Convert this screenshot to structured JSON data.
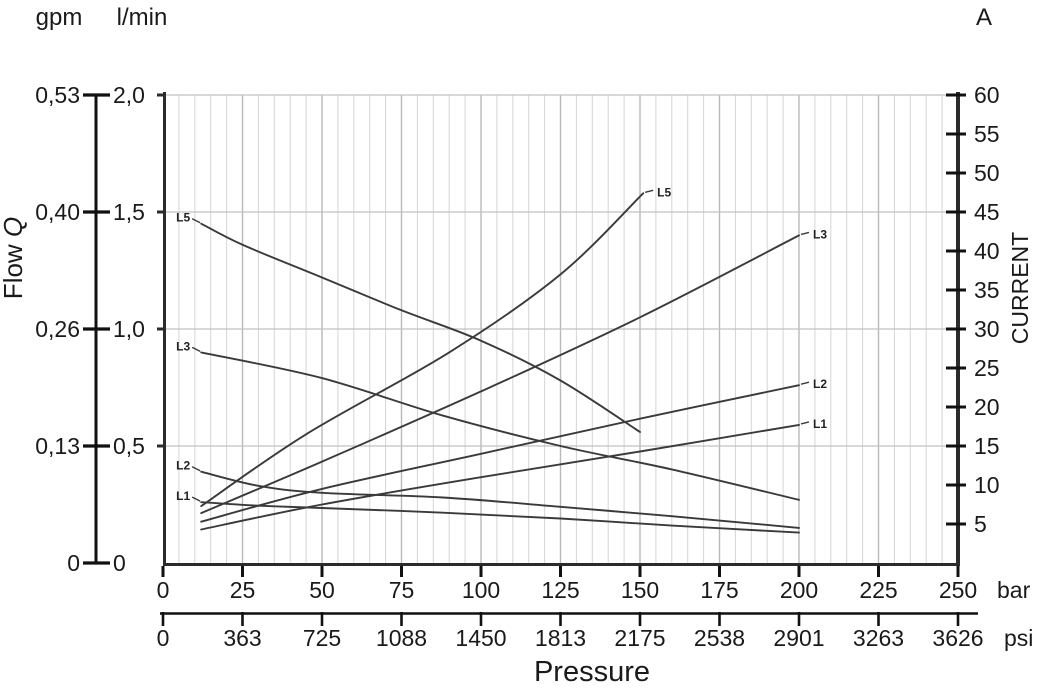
{
  "header": {
    "left_unit_primary": "gpm",
    "left_unit_secondary": "l/min",
    "right_unit": "A"
  },
  "axes": {
    "flow_axis": {
      "title_word": "Flow",
      "title_symbol": "Q"
    },
    "current_axis": {
      "title": "CURRENT"
    },
    "pressure_axis": {
      "title": "Pressure",
      "bar_suffix": "bar",
      "psi_suffix": "psi"
    }
  },
  "chart_data": {
    "type": "line",
    "title": "",
    "x_axis": {
      "label": "Pressure",
      "unit_primary": "bar",
      "unit_secondary": "psi",
      "range_bar": [
        0,
        250
      ],
      "bar_ticks": [
        "0",
        "25",
        "50",
        "75",
        "100",
        "125",
        "150",
        "175",
        "200",
        "225",
        "250"
      ],
      "psi_ticks": [
        "0",
        "363",
        "725",
        "1088",
        "1450",
        "1813",
        "2175",
        "2538",
        "2901",
        "3263",
        "3626"
      ],
      "minor_grid_step_bar": 5,
      "major_grid_step_bar": 25,
      "grid": "on"
    },
    "y_left_axis": {
      "label": "Flow Q",
      "units": [
        "gpm",
        "l/min"
      ],
      "range_lmin": [
        0,
        2.0
      ],
      "lmin_ticks": [
        "2,0",
        "1,5",
        "1,0",
        "0,5",
        "0"
      ],
      "gpm_ticks": [
        "0,53",
        "0,40",
        "0,26",
        "0,13",
        "0"
      ],
      "gridlines_lmin": [
        2.0,
        1.5,
        1.0,
        0.5
      ]
    },
    "y_right_axis": {
      "label": "CURRENT",
      "unit": "A",
      "range": [
        0,
        60
      ],
      "ticks": [
        "60",
        "55",
        "50",
        "45",
        "40",
        "35",
        "30",
        "25",
        "20",
        "15",
        "10",
        "5"
      ]
    },
    "series": [
      {
        "name": "L5",
        "quantity": "flow",
        "axis": "left",
        "label_side": "start",
        "points": [
          [
            12,
            1.45
          ],
          [
            25,
            1.36
          ],
          [
            50,
            1.22
          ],
          [
            75,
            1.08
          ],
          [
            100,
            0.95
          ],
          [
            125,
            0.78
          ],
          [
            150,
            0.56
          ]
        ]
      },
      {
        "name": "L3",
        "quantity": "flow",
        "axis": "left",
        "label_side": "start",
        "points": [
          [
            12,
            0.9
          ],
          [
            50,
            0.79
          ],
          [
            88,
            0.63
          ],
          [
            125,
            0.5
          ],
          [
            160,
            0.4
          ],
          [
            200,
            0.27
          ]
        ]
      },
      {
        "name": "L2",
        "quantity": "flow",
        "axis": "left",
        "label_side": "start",
        "points": [
          [
            12,
            0.39
          ],
          [
            30,
            0.33
          ],
          [
            50,
            0.3
          ],
          [
            88,
            0.28
          ],
          [
            125,
            0.24
          ],
          [
            160,
            0.2
          ],
          [
            200,
            0.15
          ]
        ]
      },
      {
        "name": "L1",
        "quantity": "flow",
        "axis": "left",
        "label_side": "start",
        "points": [
          [
            12,
            0.26
          ],
          [
            30,
            0.245
          ],
          [
            50,
            0.235
          ],
          [
            88,
            0.215
          ],
          [
            125,
            0.19
          ],
          [
            160,
            0.16
          ],
          [
            200,
            0.13
          ]
        ]
      },
      {
        "name": "L5",
        "quantity": "current",
        "axis": "right",
        "label_side": "end",
        "points": [
          [
            12,
            7.3
          ],
          [
            45,
            16.5
          ],
          [
            90,
            27.0
          ],
          [
            125,
            37.0
          ],
          [
            151,
            47.4
          ]
        ]
      },
      {
        "name": "L3",
        "quantity": "current",
        "axis": "right",
        "label_side": "end",
        "points": [
          [
            12,
            6.4
          ],
          [
            50,
            13.0
          ],
          [
            100,
            22.0
          ],
          [
            150,
            31.5
          ],
          [
            200,
            42.0
          ]
        ]
      },
      {
        "name": "L2",
        "quantity": "current",
        "axis": "right",
        "label_side": "end",
        "points": [
          [
            12,
            5.3
          ],
          [
            50,
            9.5
          ],
          [
            100,
            14.0
          ],
          [
            150,
            18.5
          ],
          [
            200,
            22.8
          ]
        ]
      },
      {
        "name": "L1",
        "quantity": "current",
        "axis": "right",
        "label_side": "end",
        "points": [
          [
            12,
            4.3
          ],
          [
            50,
            7.5
          ],
          [
            100,
            11.0
          ],
          [
            150,
            14.3
          ],
          [
            200,
            17.7
          ]
        ]
      }
    ]
  }
}
